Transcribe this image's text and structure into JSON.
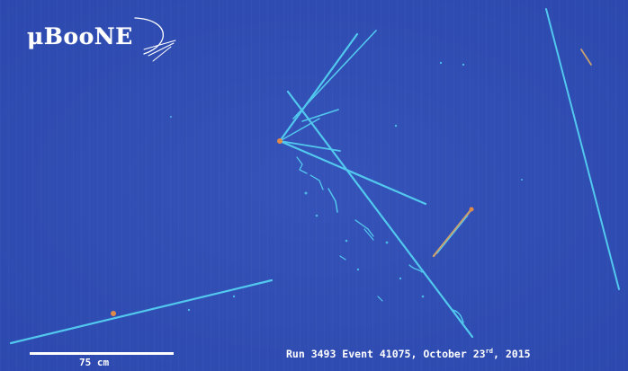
{
  "logo": {
    "text": "μBooNE"
  },
  "scale": {
    "label": "75 cm"
  },
  "caption": {
    "prefix": "Run 3493 Event 41075, October 23",
    "suffix": "rd",
    "year": ", 2015"
  },
  "colors": {
    "background": "#2f4db3",
    "track": "#52c8ee",
    "vertex": "#e08a4a",
    "text": "#ffffff"
  }
}
